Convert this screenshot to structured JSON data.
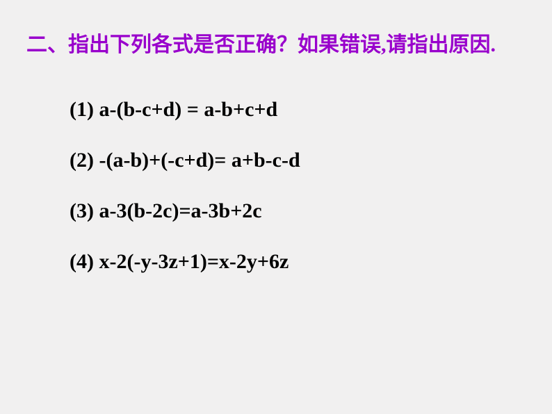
{
  "header": {
    "text": "二、指出下列各式是否正确？如果错误,请指出原因."
  },
  "equations": [
    {
      "text": "(1) a-(b-c+d) =  a-b+c+d"
    },
    {
      "text": "(2) -(a-b)+(-c+d)= a+b-c-d"
    },
    {
      "text": "(3) a-3(b-2c)=a-3b+2c"
    },
    {
      "text": "(4) x-2(-y-3z+1)=x-2y+6z"
    }
  ],
  "colors": {
    "background": "#f1f0f0",
    "header_text": "#9900cc",
    "equation_text": "#000000"
  },
  "typography": {
    "header_fontsize": 30,
    "header_weight": "bold",
    "equation_fontsize": 30,
    "equation_weight": "bold"
  }
}
